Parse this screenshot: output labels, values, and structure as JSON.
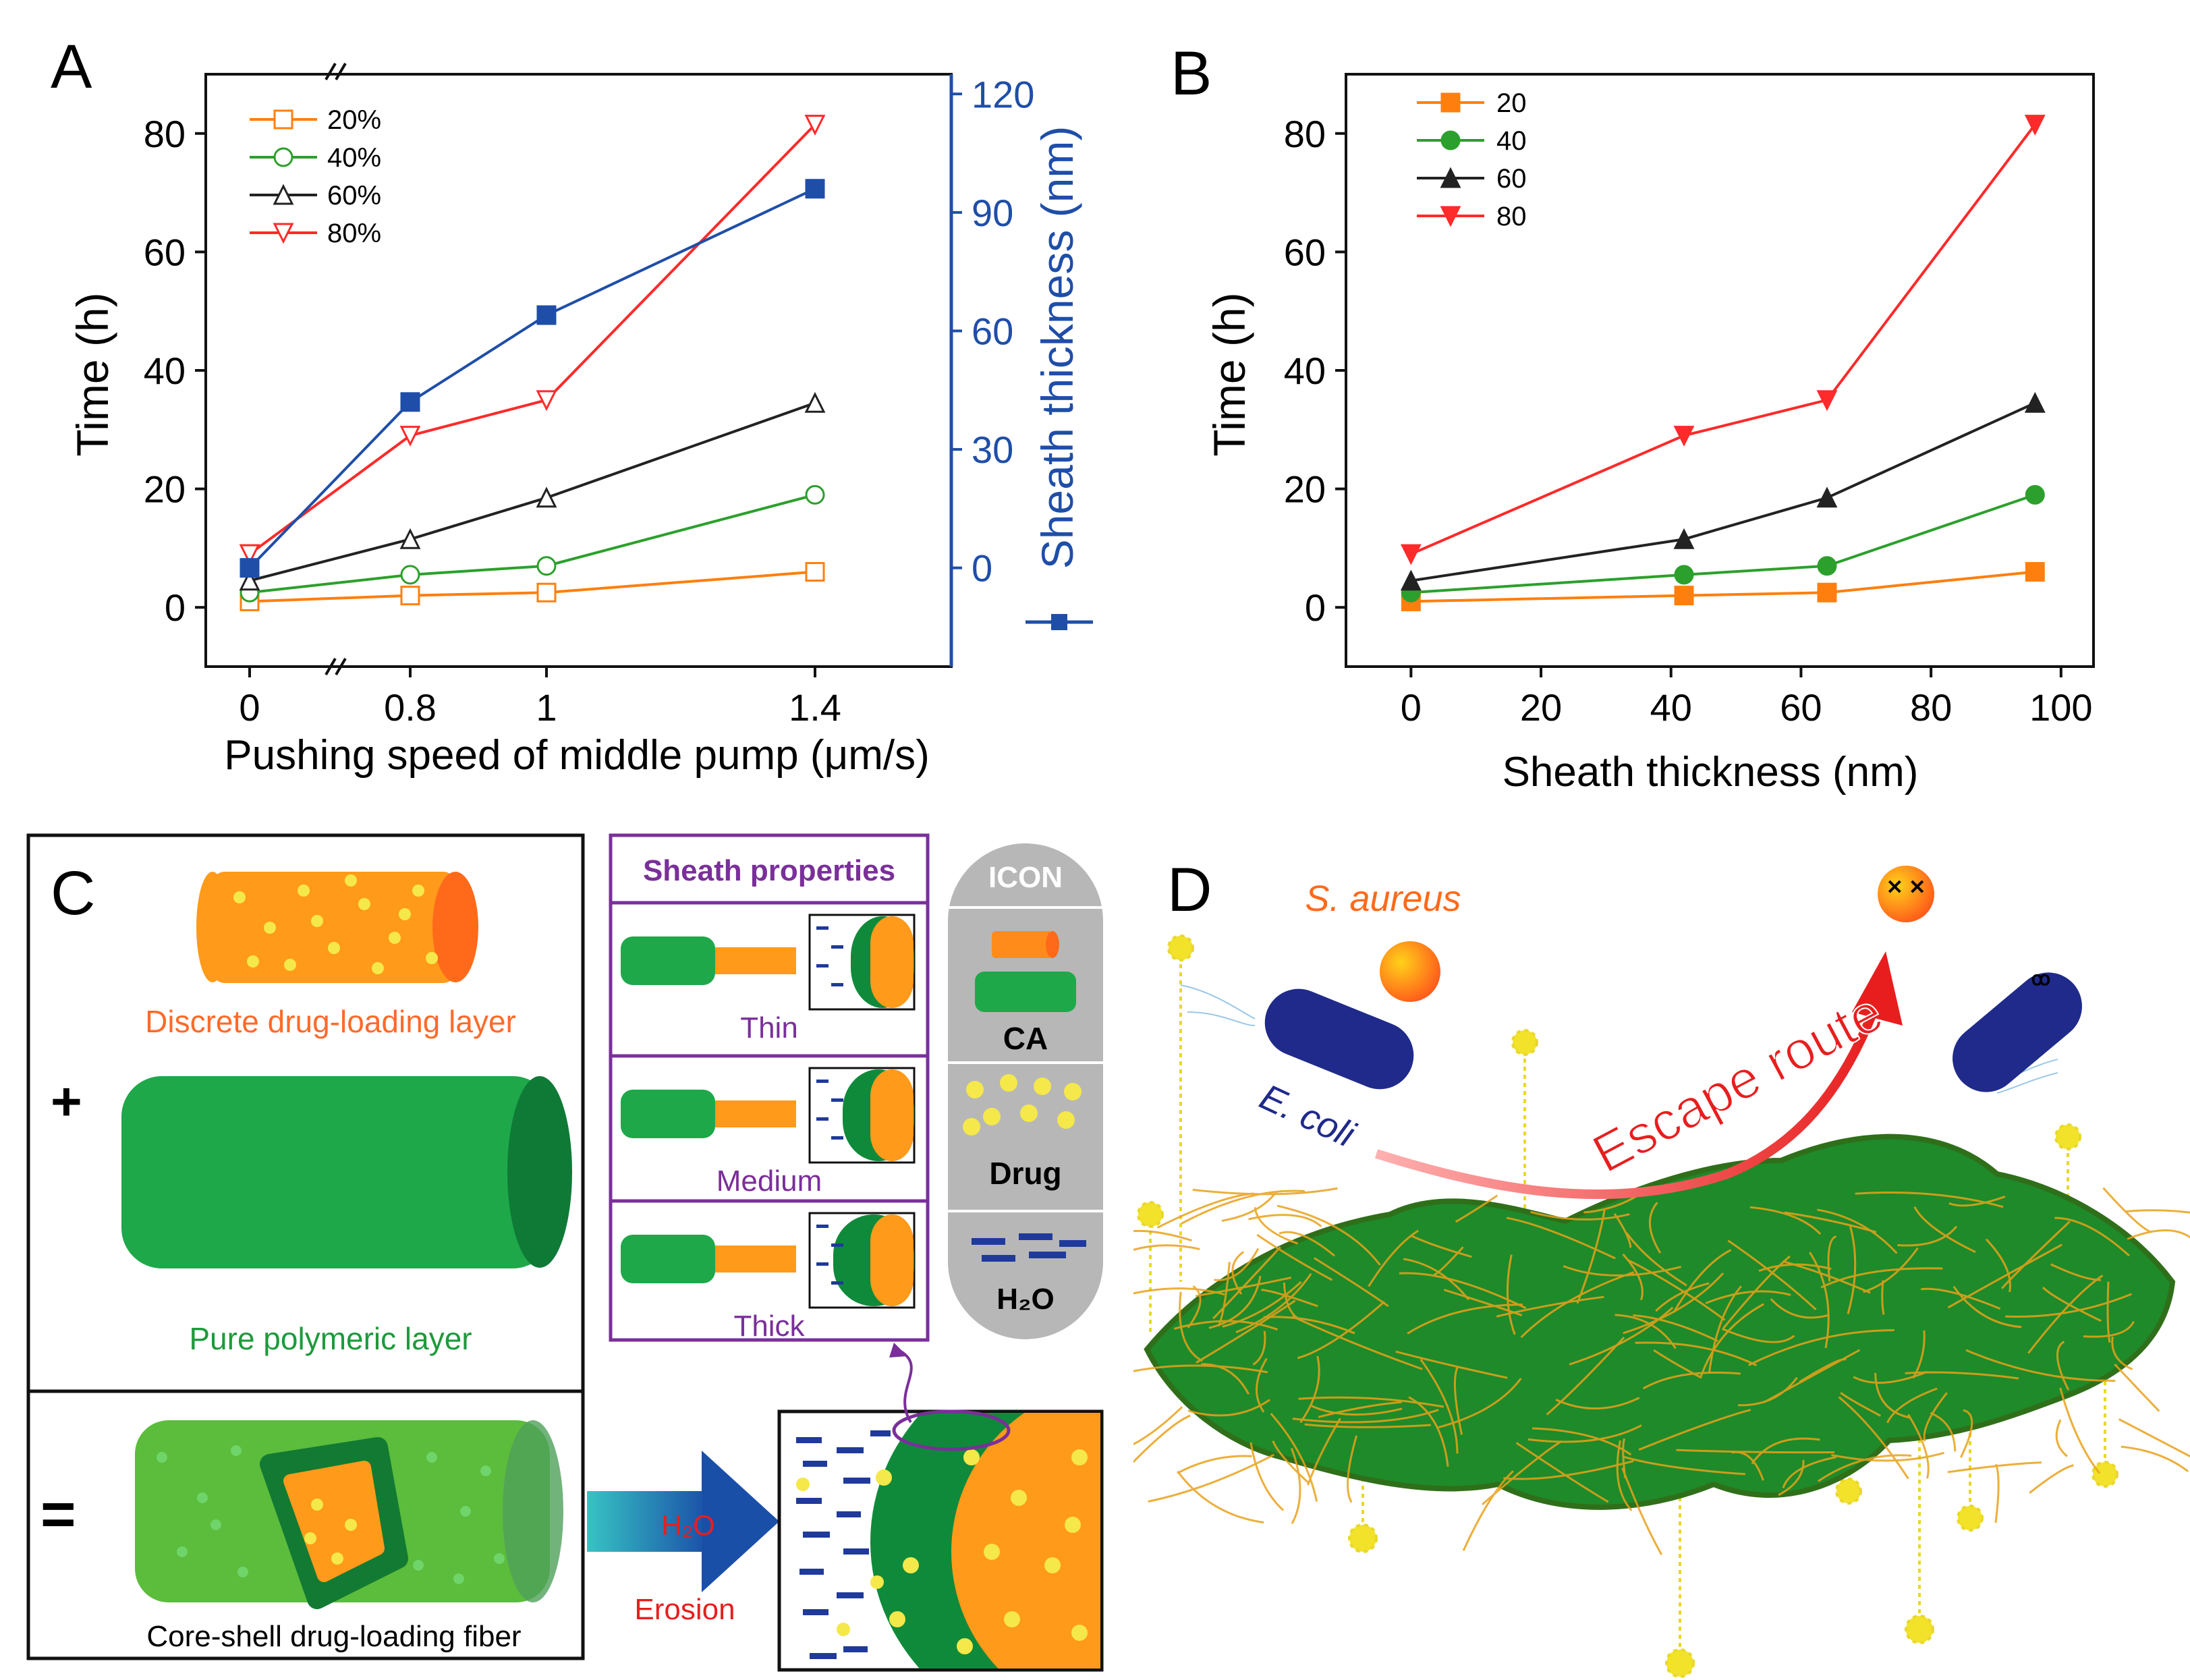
{
  "panels": {
    "a": "A",
    "b": "B",
    "c": "C",
    "d": "D"
  },
  "chart_data": [
    {
      "type": "line",
      "panel": "A",
      "xlabel": "Pushing speed of middle pump (μm/s)",
      "ylabel": "Time (h)",
      "y2label": "Sheath thickness (nm)",
      "x_ticks": [
        "0",
        "0.8",
        "1",
        "1.4"
      ],
      "x": [
        0,
        0.8,
        1,
        1.4
      ],
      "ylim": [
        -10,
        90
      ],
      "y_ticks": [
        "0",
        "20",
        "40",
        "60",
        "80"
      ],
      "y2lim": [
        -25,
        125
      ],
      "y2_ticks": [
        "0",
        "30",
        "60",
        "90",
        "120"
      ],
      "series": [
        {
          "name": "20%",
          "color": "#ff7f0e",
          "marker": "square-open",
          "values": [
            1,
            2,
            2.5,
            6
          ]
        },
        {
          "name": "40%",
          "color": "#2ca02c",
          "marker": "circle-open",
          "values": [
            2.5,
            5.5,
            7,
            19
          ]
        },
        {
          "name": "60%",
          "color": "#222222",
          "marker": "triangle-open",
          "values": [
            4.5,
            11.5,
            18.5,
            34.5
          ]
        },
        {
          "name": "80%",
          "color": "#ff2a2a",
          "marker": "triangle-down-open",
          "values": [
            9,
            29,
            35,
            81.5
          ]
        }
      ],
      "secondary_series": {
        "name": "Sheath thickness",
        "color": "#1f4ea8",
        "marker": "square-filled",
        "values": [
          0,
          42,
          64,
          96
        ]
      }
    },
    {
      "type": "line",
      "panel": "B",
      "xlabel": "Sheath thickness (nm)",
      "ylabel": "Time (h)",
      "xlim": [
        -10,
        105
      ],
      "x_ticks": [
        "0",
        "20",
        "40",
        "60",
        "80",
        "100"
      ],
      "ylim": [
        -10,
        90
      ],
      "y_ticks": [
        "0",
        "20",
        "40",
        "60",
        "80"
      ],
      "x": [
        0,
        42,
        64,
        96
      ],
      "series": [
        {
          "name": "20",
          "color": "#ff7f0e",
          "marker": "square",
          "values": [
            1,
            2,
            2.5,
            6
          ]
        },
        {
          "name": "40",
          "color": "#2ca02c",
          "marker": "circle",
          "values": [
            2.5,
            5.5,
            7,
            19
          ]
        },
        {
          "name": "60",
          "color": "#222222",
          "marker": "triangle",
          "values": [
            4.5,
            11.5,
            18.5,
            34.5
          ]
        },
        {
          "name": "80",
          "color": "#ff2a2a",
          "marker": "triangle-down",
          "values": [
            9,
            29,
            35,
            81.5
          ]
        }
      ]
    }
  ],
  "panel_c": {
    "discrete_label": "Discrete drug-loading layer",
    "plus": "+",
    "pure_label": "Pure polymeric layer",
    "equals": "=",
    "coreshell_label": "Core-shell drug-loading fiber",
    "arrow_h2o": "H₂O",
    "arrow_erosion": "Erosion",
    "sheath_title": "Sheath properties",
    "sheath_rows": [
      "Thin",
      "Medium",
      "Thick"
    ],
    "icon_title": "ICON",
    "icon_ca": "CA",
    "icon_drug": "Drug",
    "icon_h2o": "H₂O"
  },
  "panel_d": {
    "s_aureus": "S. aureus",
    "e_coli": "E. coli",
    "escape": "Escape route"
  },
  "colors": {
    "orange": "#ff8c1a",
    "green": "#1e9a3c",
    "dark_green": "#0f7a2a",
    "purple": "#7a2f9a",
    "blue": "#1f3a9a",
    "yellow": "#f2e22a",
    "red": "#e81e1e"
  }
}
